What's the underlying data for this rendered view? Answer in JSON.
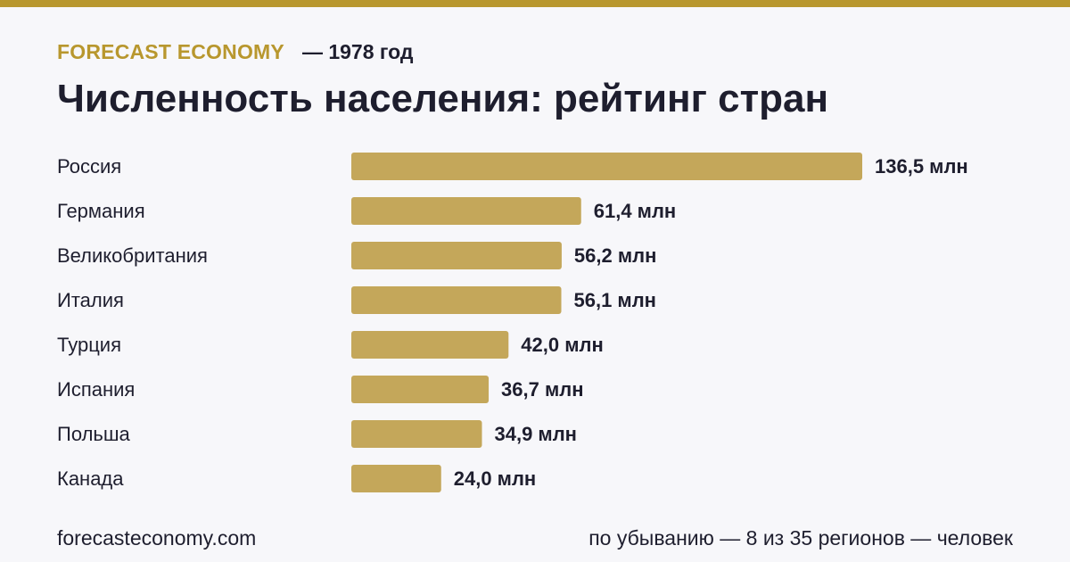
{
  "colors": {
    "accent": "#b8972e",
    "bar": "#c4a75a",
    "text": "#1e1e2e",
    "background": "#f7f7fa"
  },
  "header": {
    "brand": "FORECAST ECONOMY",
    "period": "— 1978 год"
  },
  "title": "Численность населения: рейтинг стран",
  "footer": {
    "site": "forecasteconomy.com",
    "note": "по убыванию — 8 из 35 регионов — человек"
  },
  "chart_data": {
    "type": "bar",
    "orientation": "horizontal",
    "categories": [
      "Россия",
      "Германия",
      "Великобритания",
      "Италия",
      "Турция",
      "Испания",
      "Польша",
      "Канада"
    ],
    "values": [
      136.5,
      61.4,
      56.2,
      56.1,
      42.0,
      36.7,
      34.9,
      24.0
    ],
    "value_labels": [
      "136,5 млн",
      "61,4 млн",
      "56,2 млн",
      "56,1 млн",
      "42,0 млн",
      "36,7 млн",
      "34,9 млн",
      "24,0 млн"
    ],
    "unit": "млн",
    "title": "Численность населения: рейтинг стран",
    "xlabel": "",
    "ylabel": "",
    "xlim": [
      0,
      136.5
    ],
    "grid": false,
    "legend": "none"
  }
}
